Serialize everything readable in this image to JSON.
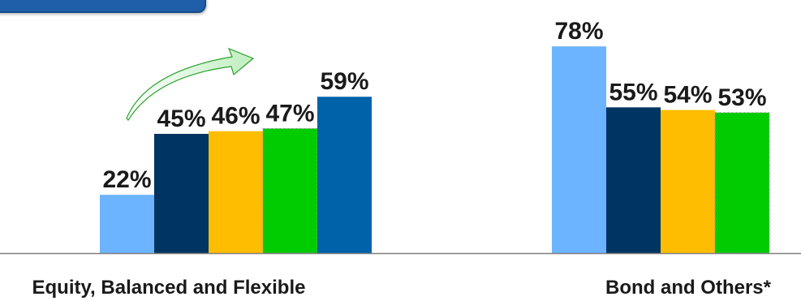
{
  "chart_data": {
    "type": "bar",
    "categories": [
      "Equity, Balanced and Flexible",
      "Bond and Others*"
    ],
    "series": [
      {
        "values": [
          22,
          78
        ],
        "labels": [
          "22%",
          "78%"
        ],
        "color": "#6cb4ff"
      },
      {
        "values": [
          45,
          55
        ],
        "labels": [
          "45%",
          "55%"
        ],
        "color": "#003461"
      },
      {
        "values": [
          46,
          54
        ],
        "labels": [
          "46%",
          "54%"
        ],
        "color": "#ffbd00"
      },
      {
        "values": [
          47,
          53
        ],
        "labels": [
          "47%",
          "53%"
        ],
        "color": "#00cc00"
      },
      {
        "values": [
          59,
          null
        ],
        "labels": [
          "59%",
          ""
        ],
        "color": "#0062a8"
      }
    ],
    "ylim": [
      0,
      100
    ],
    "grid": false,
    "legend": "none",
    "annotation": "green-curved-arrow-increase"
  }
}
